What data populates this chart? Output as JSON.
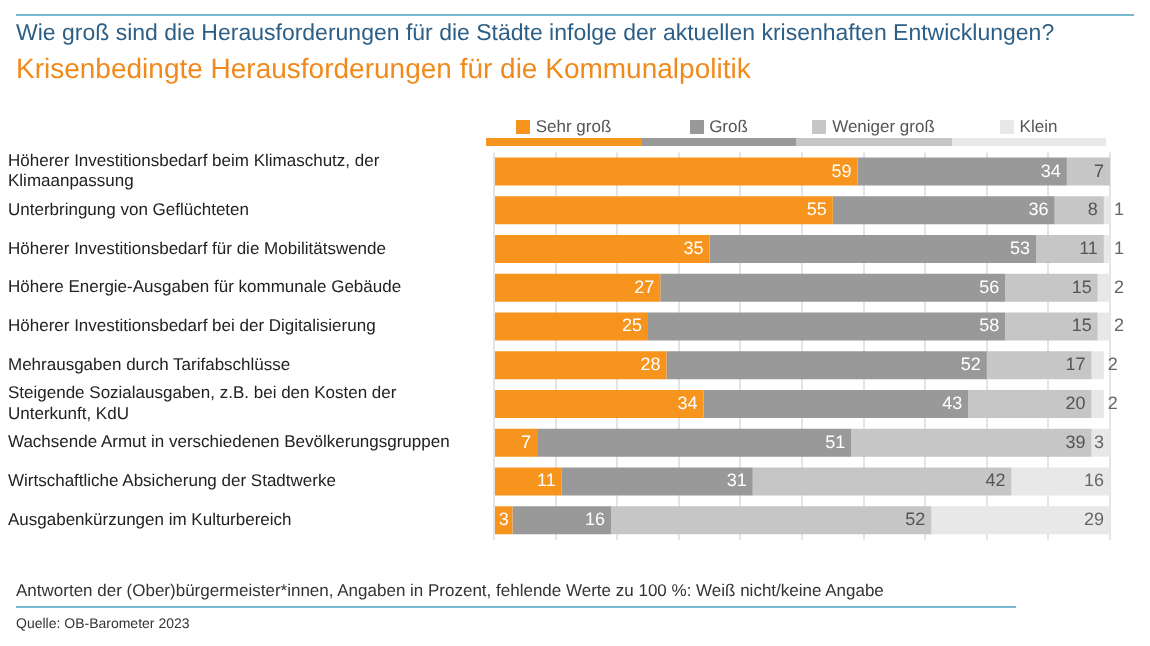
{
  "chart_data": {
    "type": "bar",
    "orientation": "horizontal",
    "stacked": true,
    "title": "Wie groß sind die Herausforderungen für die Städte infolge der aktuellen krisenhaften Entwicklungen?",
    "subtitle": "Krisenbedingte Herausforderungen für die Kommunalpolitik",
    "categories": [
      "Höherer Investitionsbedarf beim Klimaschutz, der Klimaanpassung",
      "Unterbringung von Geflüchteten",
      "Höherer Investitionsbedarf für die Mobilitätswende",
      "Höhere Energie-Ausgaben für kommunale Gebäude",
      "Höherer Investitionsbedarf bei der Digitalisierung",
      "Mehrausgaben durch Tarifabschlüsse",
      "Steigende Sozialausgaben, z.B. bei den Kosten der Unterkunft, KdU",
      "Wachsende Armut in verschiedenen Bevölkerungsgruppen",
      "Wirtschaftliche Absicherung der Stadtwerke",
      "Ausgabenkürzungen im Kulturbereich"
    ],
    "series": [
      {
        "name": "Sehr groß",
        "color": "#f7941d",
        "values": [
          59,
          55,
          35,
          27,
          25,
          28,
          34,
          7,
          11,
          3
        ]
      },
      {
        "name": "Groß",
        "color": "#999999",
        "values": [
          34,
          36,
          53,
          56,
          58,
          52,
          43,
          51,
          31,
          16
        ]
      },
      {
        "name": "Weniger groß",
        "color": "#c6c6c6",
        "values": [
          7,
          8,
          11,
          15,
          15,
          17,
          20,
          39,
          42,
          52
        ]
      },
      {
        "name": "Klein",
        "color": "#e8e8e8",
        "values": [
          null,
          1,
          1,
          2,
          2,
          2,
          2,
          3,
          16,
          29
        ]
      }
    ],
    "xlim": [
      0,
      100
    ],
    "xticks": [
      {
        "value": 0,
        "label": null
      },
      {
        "value": 10,
        "label": null
      },
      {
        "value": 20,
        "label": null
      },
      {
        "value": 30,
        "label": null
      },
      {
        "value": 40,
        "label": null
      },
      {
        "value": 50,
        "label": null
      },
      {
        "value": 60,
        "label": null
      },
      {
        "value": 70,
        "label": null
      },
      {
        "value": 80,
        "label": null
      },
      {
        "value": 90,
        "label": null
      },
      {
        "value": 100,
        "label": null
      }
    ],
    "grid": "x",
    "legend": "top",
    "data_labels": true,
    "annotations": [
      "Antworten der (Ober)bürgermeister*innen, Angaben in Prozent, fehlende Werte zu 100 %: Weiß nicht/keine Angabe",
      "Quelle: OB-Barometer 2023"
    ]
  }
}
